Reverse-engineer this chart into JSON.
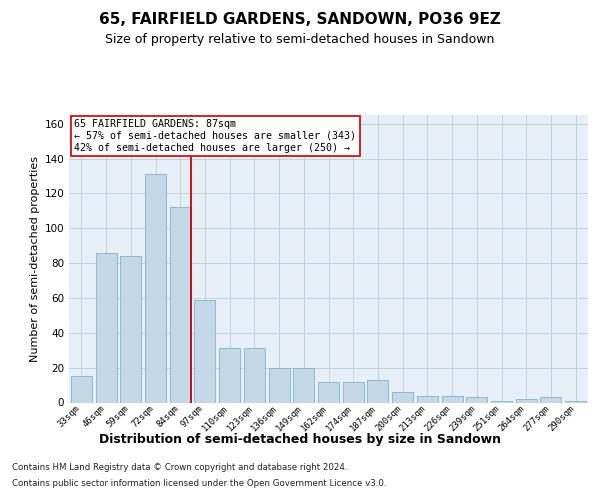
{
  "title": "65, FAIRFIELD GARDENS, SANDOWN, PO36 9EZ",
  "subtitle": "Size of property relative to semi-detached houses in Sandown",
  "xlabel": "Distribution of semi-detached houses by size in Sandown",
  "ylabel": "Number of semi-detached properties",
  "categories": [
    "33sqm",
    "46sqm",
    "59sqm",
    "72sqm",
    "84sqm",
    "97sqm",
    "110sqm",
    "123sqm",
    "136sqm",
    "149sqm",
    "162sqm",
    "174sqm",
    "187sqm",
    "200sqm",
    "213sqm",
    "226sqm",
    "239sqm",
    "251sqm",
    "264sqm",
    "277sqm",
    "290sqm"
  ],
  "values": [
    15,
    86,
    84,
    131,
    112,
    59,
    31,
    31,
    20,
    20,
    12,
    12,
    13,
    6,
    4,
    4,
    3,
    1,
    2,
    3,
    1
  ],
  "bar_color": "#c5d8e8",
  "bar_edge_color": "#7fb3d3",
  "vline_color": "#cc0000",
  "annotation_box_edge": "#cc0000",
  "annotation_title": "65 FAIRFIELD GARDENS: 87sqm",
  "annotation_line1": "← 57% of semi-detached houses are smaller (343)",
  "annotation_line2": "42% of semi-detached houses are larger (250) →",
  "ylim": [
    0,
    165
  ],
  "yticks": [
    0,
    20,
    40,
    60,
    80,
    100,
    120,
    140,
    160
  ],
  "footer_line1": "Contains HM Land Registry data © Crown copyright and database right 2024.",
  "footer_line2": "Contains public sector information licensed under the Open Government Licence v3.0.",
  "bg_color": "#ffffff",
  "plot_bg_color": "#e8f0f7",
  "grid_color": "#c0cdd8",
  "title_fontsize": 11,
  "subtitle_fontsize": 9,
  "ylabel_fontsize": 8,
  "xlabel_fontsize": 9
}
